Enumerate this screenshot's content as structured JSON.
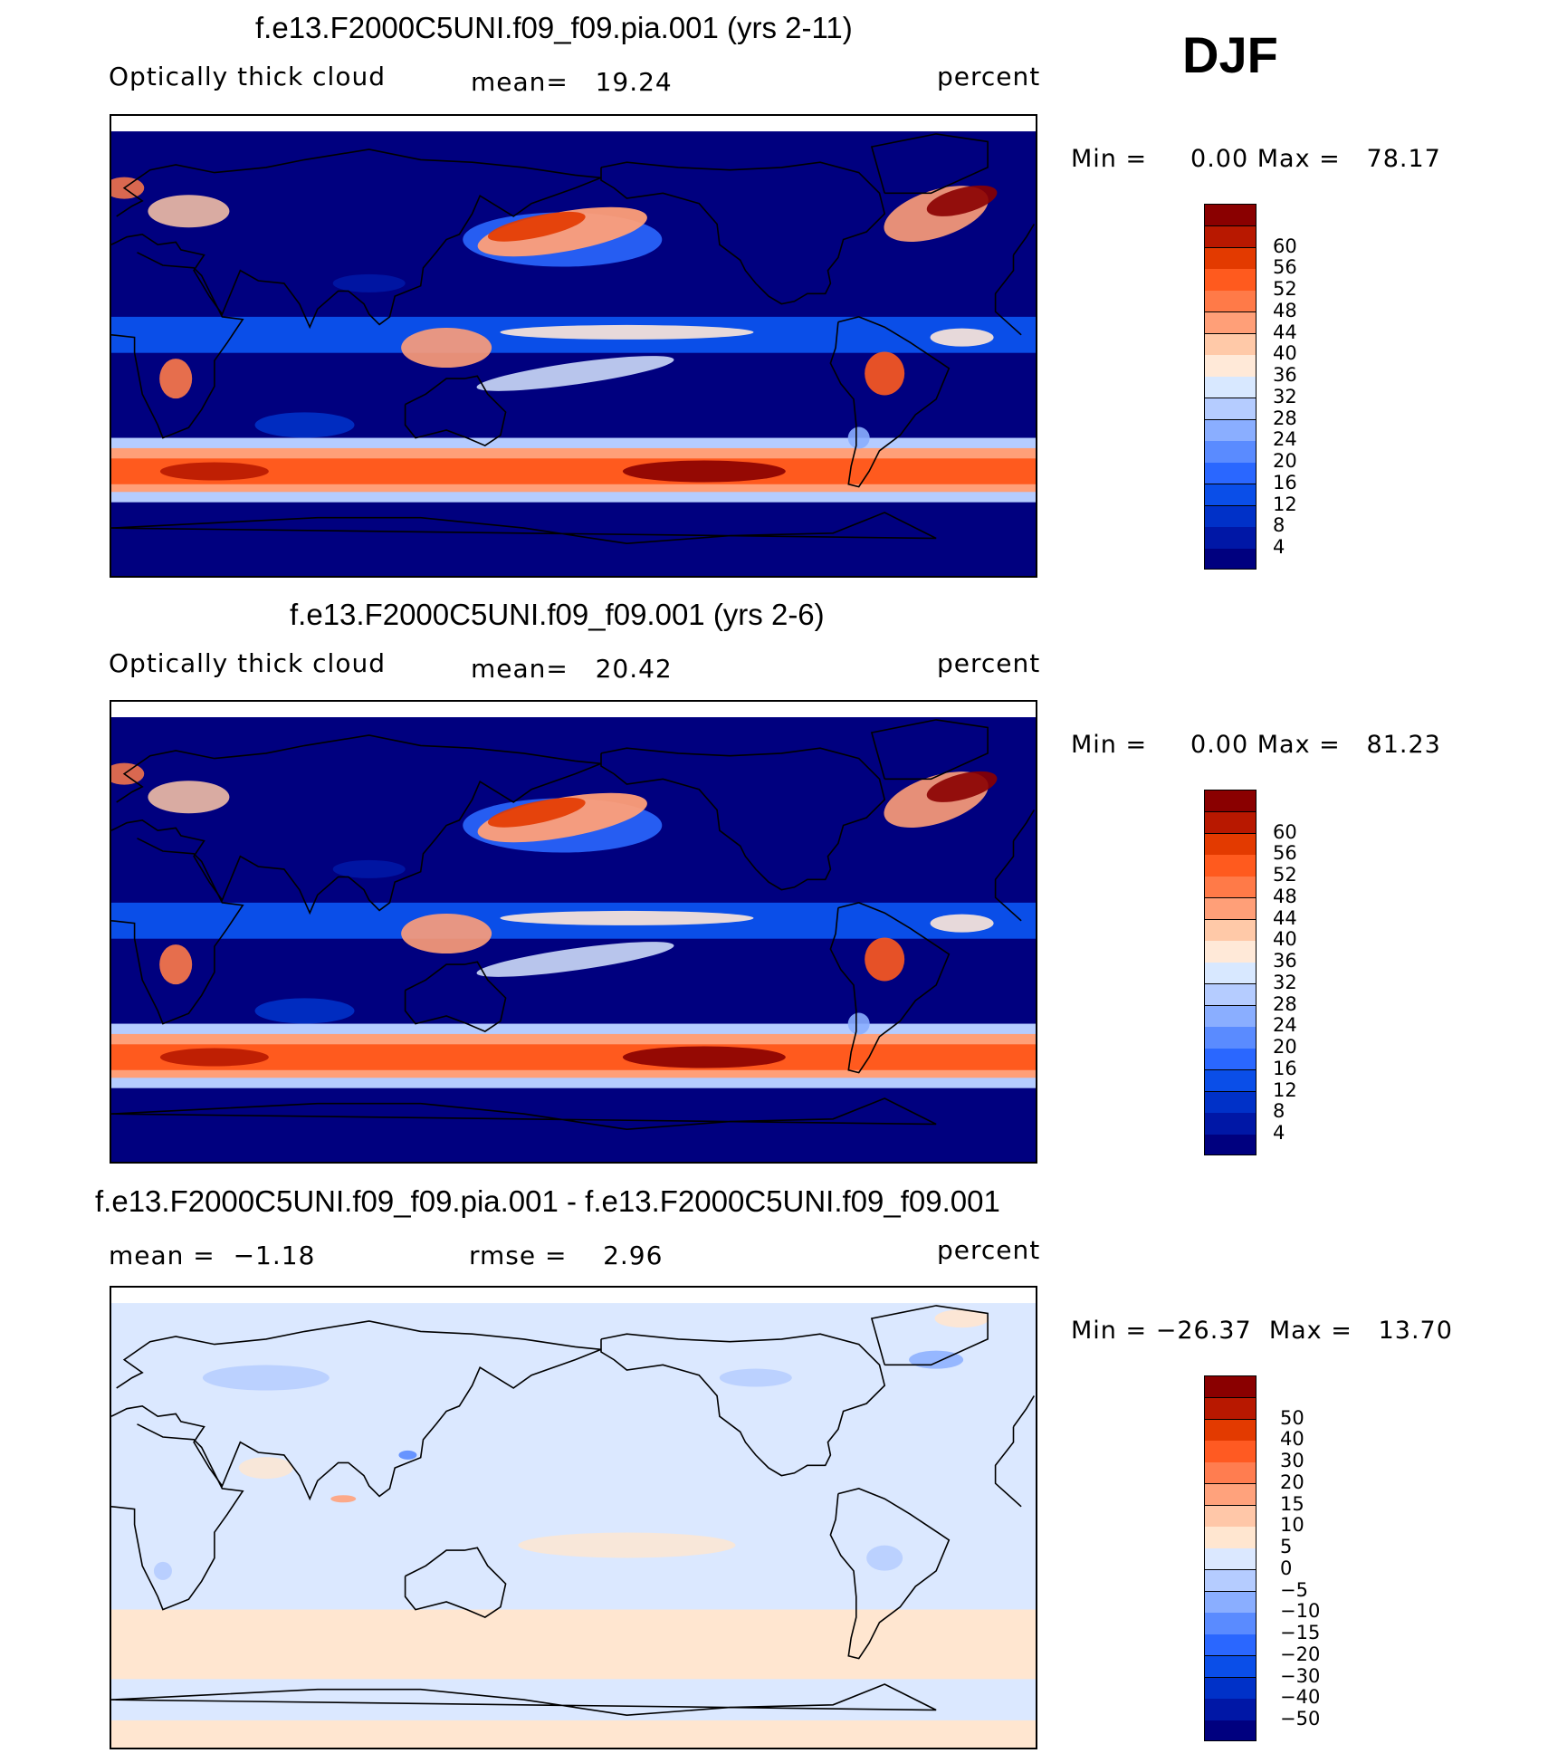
{
  "season": "DJF",
  "colors": {
    "abs_palette": [
      "#00007f",
      "#0017a6",
      "#0031c8",
      "#0a4ee8",
      "#2a67ff",
      "#5a8bff",
      "#8aaeff",
      "#b5ccff",
      "#d8e8ff",
      "#ffe9d8",
      "#ffc9a8",
      "#ff9f78",
      "#ff7a48",
      "#ff5a1e",
      "#e33a00",
      "#b81800",
      "#8a0000"
    ],
    "diff_palette": [
      "#00007f",
      "#0017a6",
      "#0031c8",
      "#0a4ee8",
      "#2a67ff",
      "#5a8bff",
      "#8aaeff",
      "#b5ccff",
      "#dbe8ff",
      "#ffe6d0",
      "#ffc7a8",
      "#ffa27c",
      "#ff7d50",
      "#ff5a22",
      "#e33a00",
      "#b81800",
      "#8a0000"
    ]
  },
  "chart_data": [
    {
      "type": "heatmap",
      "title": "f.e13.F2000C5UNI.f09_f09.pia.001 (yrs 2-11)",
      "variable": "Optically thick cloud",
      "mean_label": "mean=",
      "mean": "19.24",
      "units": "percent",
      "min_label": "Min =",
      "min": "0.00",
      "max_label": "Max =",
      "max": "78.17",
      "colorbar_levels": [
        "60",
        "56",
        "52",
        "48",
        "44",
        "40",
        "36",
        "32",
        "28",
        "24",
        "20",
        "16",
        "12",
        "8",
        "4"
      ],
      "colorbar_values": [
        4,
        8,
        12,
        16,
        20,
        24,
        28,
        32,
        36,
        40,
        44,
        48,
        52,
        56,
        60
      ],
      "field_style": "absolute"
    },
    {
      "type": "heatmap",
      "title": "f.e13.F2000C5UNI.f09_f09.001 (yrs 2-6)",
      "variable": "Optically thick cloud",
      "mean_label": "mean=",
      "mean": "20.42",
      "units": "percent",
      "min_label": "Min =",
      "min": "0.00",
      "max_label": "Max =",
      "max": "81.23",
      "colorbar_levels": [
        "60",
        "56",
        "52",
        "48",
        "44",
        "40",
        "36",
        "32",
        "28",
        "24",
        "20",
        "16",
        "12",
        "8",
        "4"
      ],
      "colorbar_values": [
        4,
        8,
        12,
        16,
        20,
        24,
        28,
        32,
        36,
        40,
        44,
        48,
        52,
        56,
        60
      ],
      "field_style": "absolute"
    },
    {
      "type": "heatmap",
      "title": "f.e13.F2000C5UNI.f09_f09.pia.001 - f.e13.F2000C5UNI.f09_f09.001",
      "mean_label": "mean =",
      "mean": "−1.18",
      "rmse_label": "rmse =",
      "rmse": "2.96",
      "units": "percent",
      "min_label": "Min =",
      "min": "−26.37",
      "max_label": "Max =",
      "max": "13.70",
      "colorbar_levels": [
        "50",
        "40",
        "30",
        "20",
        "15",
        "10",
        "5",
        "0",
        "−5",
        "−10",
        "−15",
        "−20",
        "−30",
        "−40",
        "−50"
      ],
      "colorbar_values": [
        -50,
        -40,
        -30,
        -20,
        -15,
        -10,
        -5,
        0,
        5,
        10,
        15,
        20,
        30,
        40,
        50
      ],
      "field_style": "difference"
    }
  ]
}
